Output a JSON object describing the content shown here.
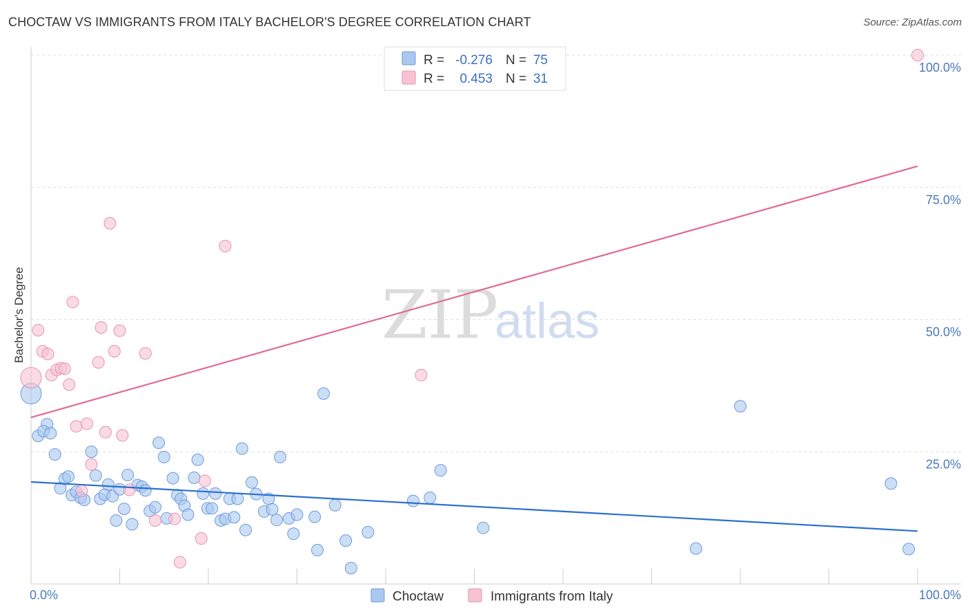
{
  "header": {
    "title": "CHOCTAW VS IMMIGRANTS FROM ITALY BACHELOR'S DEGREE CORRELATION CHART",
    "source": "Source: ZipAtlas.com"
  },
  "watermark": {
    "zip": "ZIP",
    "atlas": "atlas"
  },
  "legend": {
    "r_label": "R =",
    "n_label": "N =",
    "rows": [
      {
        "r": "-0.276",
        "n": "75"
      },
      {
        "r": "0.453",
        "n": "31"
      }
    ]
  },
  "chart_data": {
    "type": "scatter",
    "title": "CHOCTAW VS IMMIGRANTS FROM ITALY BACHELOR'S DEGREE CORRELATION CHART",
    "xlabel": "",
    "ylabel": "Bachelor's Degree",
    "xlim": [
      0,
      100
    ],
    "ylim": [
      0,
      100
    ],
    "x_tick_labels": [
      "0.0%",
      "100.0%"
    ],
    "y_ticks": [
      {
        "value": 25,
        "label": "25.0%"
      },
      {
        "value": 50,
        "label": "50.0%"
      },
      {
        "value": 75,
        "label": "75.0%"
      },
      {
        "value": 100,
        "label": "100.0%"
      }
    ],
    "grid": "horizontal dashed",
    "legend_position": "top-center",
    "colors": {
      "choctaw_fill": "#a9c8f0",
      "choctaw_stroke": "#6f9ad8",
      "choctaw_line": "#2a6fd0",
      "italy_fill": "#f7c3d3",
      "italy_stroke": "#e891ad",
      "italy_line": "#e06a92",
      "grid": "#dddddd",
      "axis": "#cccccc"
    },
    "series": [
      {
        "name": "Choctaw",
        "r": -0.276,
        "n": 75,
        "trend": {
          "x": [
            0,
            100
          ],
          "y": [
            19.3,
            10.0
          ]
        },
        "points": [
          {
            "x": 0,
            "y": 36.0,
            "big": true
          },
          {
            "x": 0.8,
            "y": 28.0
          },
          {
            "x": 1.8,
            "y": 30.2
          },
          {
            "x": 1.4,
            "y": 28.9
          },
          {
            "x": 2.2,
            "y": 28.5
          },
          {
            "x": 2.7,
            "y": 24.5
          },
          {
            "x": 3.3,
            "y": 18.1
          },
          {
            "x": 3.8,
            "y": 19.9
          },
          {
            "x": 4.2,
            "y": 20.3
          },
          {
            "x": 4.6,
            "y": 16.8
          },
          {
            "x": 5.1,
            "y": 17.4
          },
          {
            "x": 5.6,
            "y": 16.3
          },
          {
            "x": 6.0,
            "y": 15.9
          },
          {
            "x": 6.8,
            "y": 25.0
          },
          {
            "x": 7.3,
            "y": 20.5
          },
          {
            "x": 7.8,
            "y": 16.1
          },
          {
            "x": 8.3,
            "y": 16.9
          },
          {
            "x": 8.7,
            "y": 18.8
          },
          {
            "x": 9.2,
            "y": 16.6
          },
          {
            "x": 9.6,
            "y": 12.0
          },
          {
            "x": 10.0,
            "y": 17.9
          },
          {
            "x": 10.5,
            "y": 14.2
          },
          {
            "x": 10.9,
            "y": 20.6
          },
          {
            "x": 11.4,
            "y": 11.3
          },
          {
            "x": 12.0,
            "y": 18.7
          },
          {
            "x": 12.5,
            "y": 18.4
          },
          {
            "x": 12.9,
            "y": 17.7
          },
          {
            "x": 13.4,
            "y": 13.8
          },
          {
            "x": 14.0,
            "y": 14.5
          },
          {
            "x": 14.4,
            "y": 26.7
          },
          {
            "x": 15.0,
            "y": 24.0
          },
          {
            "x": 15.3,
            "y": 12.4
          },
          {
            "x": 16.0,
            "y": 20.0
          },
          {
            "x": 16.5,
            "y": 16.8
          },
          {
            "x": 16.9,
            "y": 16.1
          },
          {
            "x": 17.3,
            "y": 14.8
          },
          {
            "x": 17.7,
            "y": 13.1
          },
          {
            "x": 18.4,
            "y": 20.1
          },
          {
            "x": 18.8,
            "y": 23.5
          },
          {
            "x": 19.4,
            "y": 17.1
          },
          {
            "x": 19.9,
            "y": 14.3
          },
          {
            "x": 20.4,
            "y": 14.3
          },
          {
            "x": 20.8,
            "y": 17.1
          },
          {
            "x": 21.4,
            "y": 12.0
          },
          {
            "x": 21.9,
            "y": 12.3
          },
          {
            "x": 22.4,
            "y": 16.1
          },
          {
            "x": 22.9,
            "y": 12.6
          },
          {
            "x": 23.3,
            "y": 16.1
          },
          {
            "x": 23.8,
            "y": 25.6
          },
          {
            "x": 24.2,
            "y": 10.2
          },
          {
            "x": 24.9,
            "y": 19.2
          },
          {
            "x": 25.4,
            "y": 17.0
          },
          {
            "x": 26.3,
            "y": 13.7
          },
          {
            "x": 26.8,
            "y": 16.1
          },
          {
            "x": 27.2,
            "y": 14.1
          },
          {
            "x": 27.7,
            "y": 12.1
          },
          {
            "x": 28.1,
            "y": 24.0
          },
          {
            "x": 29.1,
            "y": 12.4
          },
          {
            "x": 29.6,
            "y": 9.5
          },
          {
            "x": 30.0,
            "y": 13.1
          },
          {
            "x": 32.0,
            "y": 12.7
          },
          {
            "x": 32.3,
            "y": 6.4
          },
          {
            "x": 33.0,
            "y": 36.0
          },
          {
            "x": 34.3,
            "y": 14.9
          },
          {
            "x": 35.5,
            "y": 8.2
          },
          {
            "x": 36.1,
            "y": 3.0
          },
          {
            "x": 38.0,
            "y": 9.8
          },
          {
            "x": 43.1,
            "y": 15.7
          },
          {
            "x": 45.0,
            "y": 16.3
          },
          {
            "x": 46.2,
            "y": 21.5
          },
          {
            "x": 51.0,
            "y": 10.6
          },
          {
            "x": 75.0,
            "y": 6.7
          },
          {
            "x": 80.0,
            "y": 33.6
          },
          {
            "x": 97.0,
            "y": 19.0
          },
          {
            "x": 99.0,
            "y": 6.6
          }
        ]
      },
      {
        "name": "Immigrants from Italy",
        "r": 0.453,
        "n": 31,
        "trend": {
          "x": [
            0,
            100
          ],
          "y": [
            31.5,
            79.0
          ]
        },
        "points": [
          {
            "x": 0,
            "y": 39.0,
            "big": true
          },
          {
            "x": 0.8,
            "y": 48.0
          },
          {
            "x": 1.3,
            "y": 44.0
          },
          {
            "x": 1.9,
            "y": 43.5
          },
          {
            "x": 2.3,
            "y": 39.5
          },
          {
            "x": 2.9,
            "y": 40.5
          },
          {
            "x": 3.4,
            "y": 40.8
          },
          {
            "x": 3.8,
            "y": 40.7
          },
          {
            "x": 4.3,
            "y": 37.7
          },
          {
            "x": 4.7,
            "y": 53.3
          },
          {
            "x": 5.1,
            "y": 29.8
          },
          {
            "x": 5.7,
            "y": 17.6
          },
          {
            "x": 6.3,
            "y": 30.3
          },
          {
            "x": 6.8,
            "y": 22.6
          },
          {
            "x": 7.6,
            "y": 41.9
          },
          {
            "x": 7.9,
            "y": 48.5
          },
          {
            "x": 8.4,
            "y": 28.7
          },
          {
            "x": 8.9,
            "y": 68.2
          },
          {
            "x": 9.4,
            "y": 44.0
          },
          {
            "x": 10.0,
            "y": 47.9
          },
          {
            "x": 10.3,
            "y": 28.1
          },
          {
            "x": 11.1,
            "y": 17.8
          },
          {
            "x": 12.9,
            "y": 43.6
          },
          {
            "x": 14.0,
            "y": 12.0
          },
          {
            "x": 16.2,
            "y": 12.3
          },
          {
            "x": 16.8,
            "y": 4.1
          },
          {
            "x": 19.2,
            "y": 8.6
          },
          {
            "x": 19.6,
            "y": 19.5
          },
          {
            "x": 21.9,
            "y": 63.9
          },
          {
            "x": 44.0,
            "y": 39.5
          },
          {
            "x": 100,
            "y": 100.0
          }
        ]
      }
    ]
  },
  "bottom_legend": {
    "items": [
      "Choctaw",
      "Immigrants from Italy"
    ]
  }
}
